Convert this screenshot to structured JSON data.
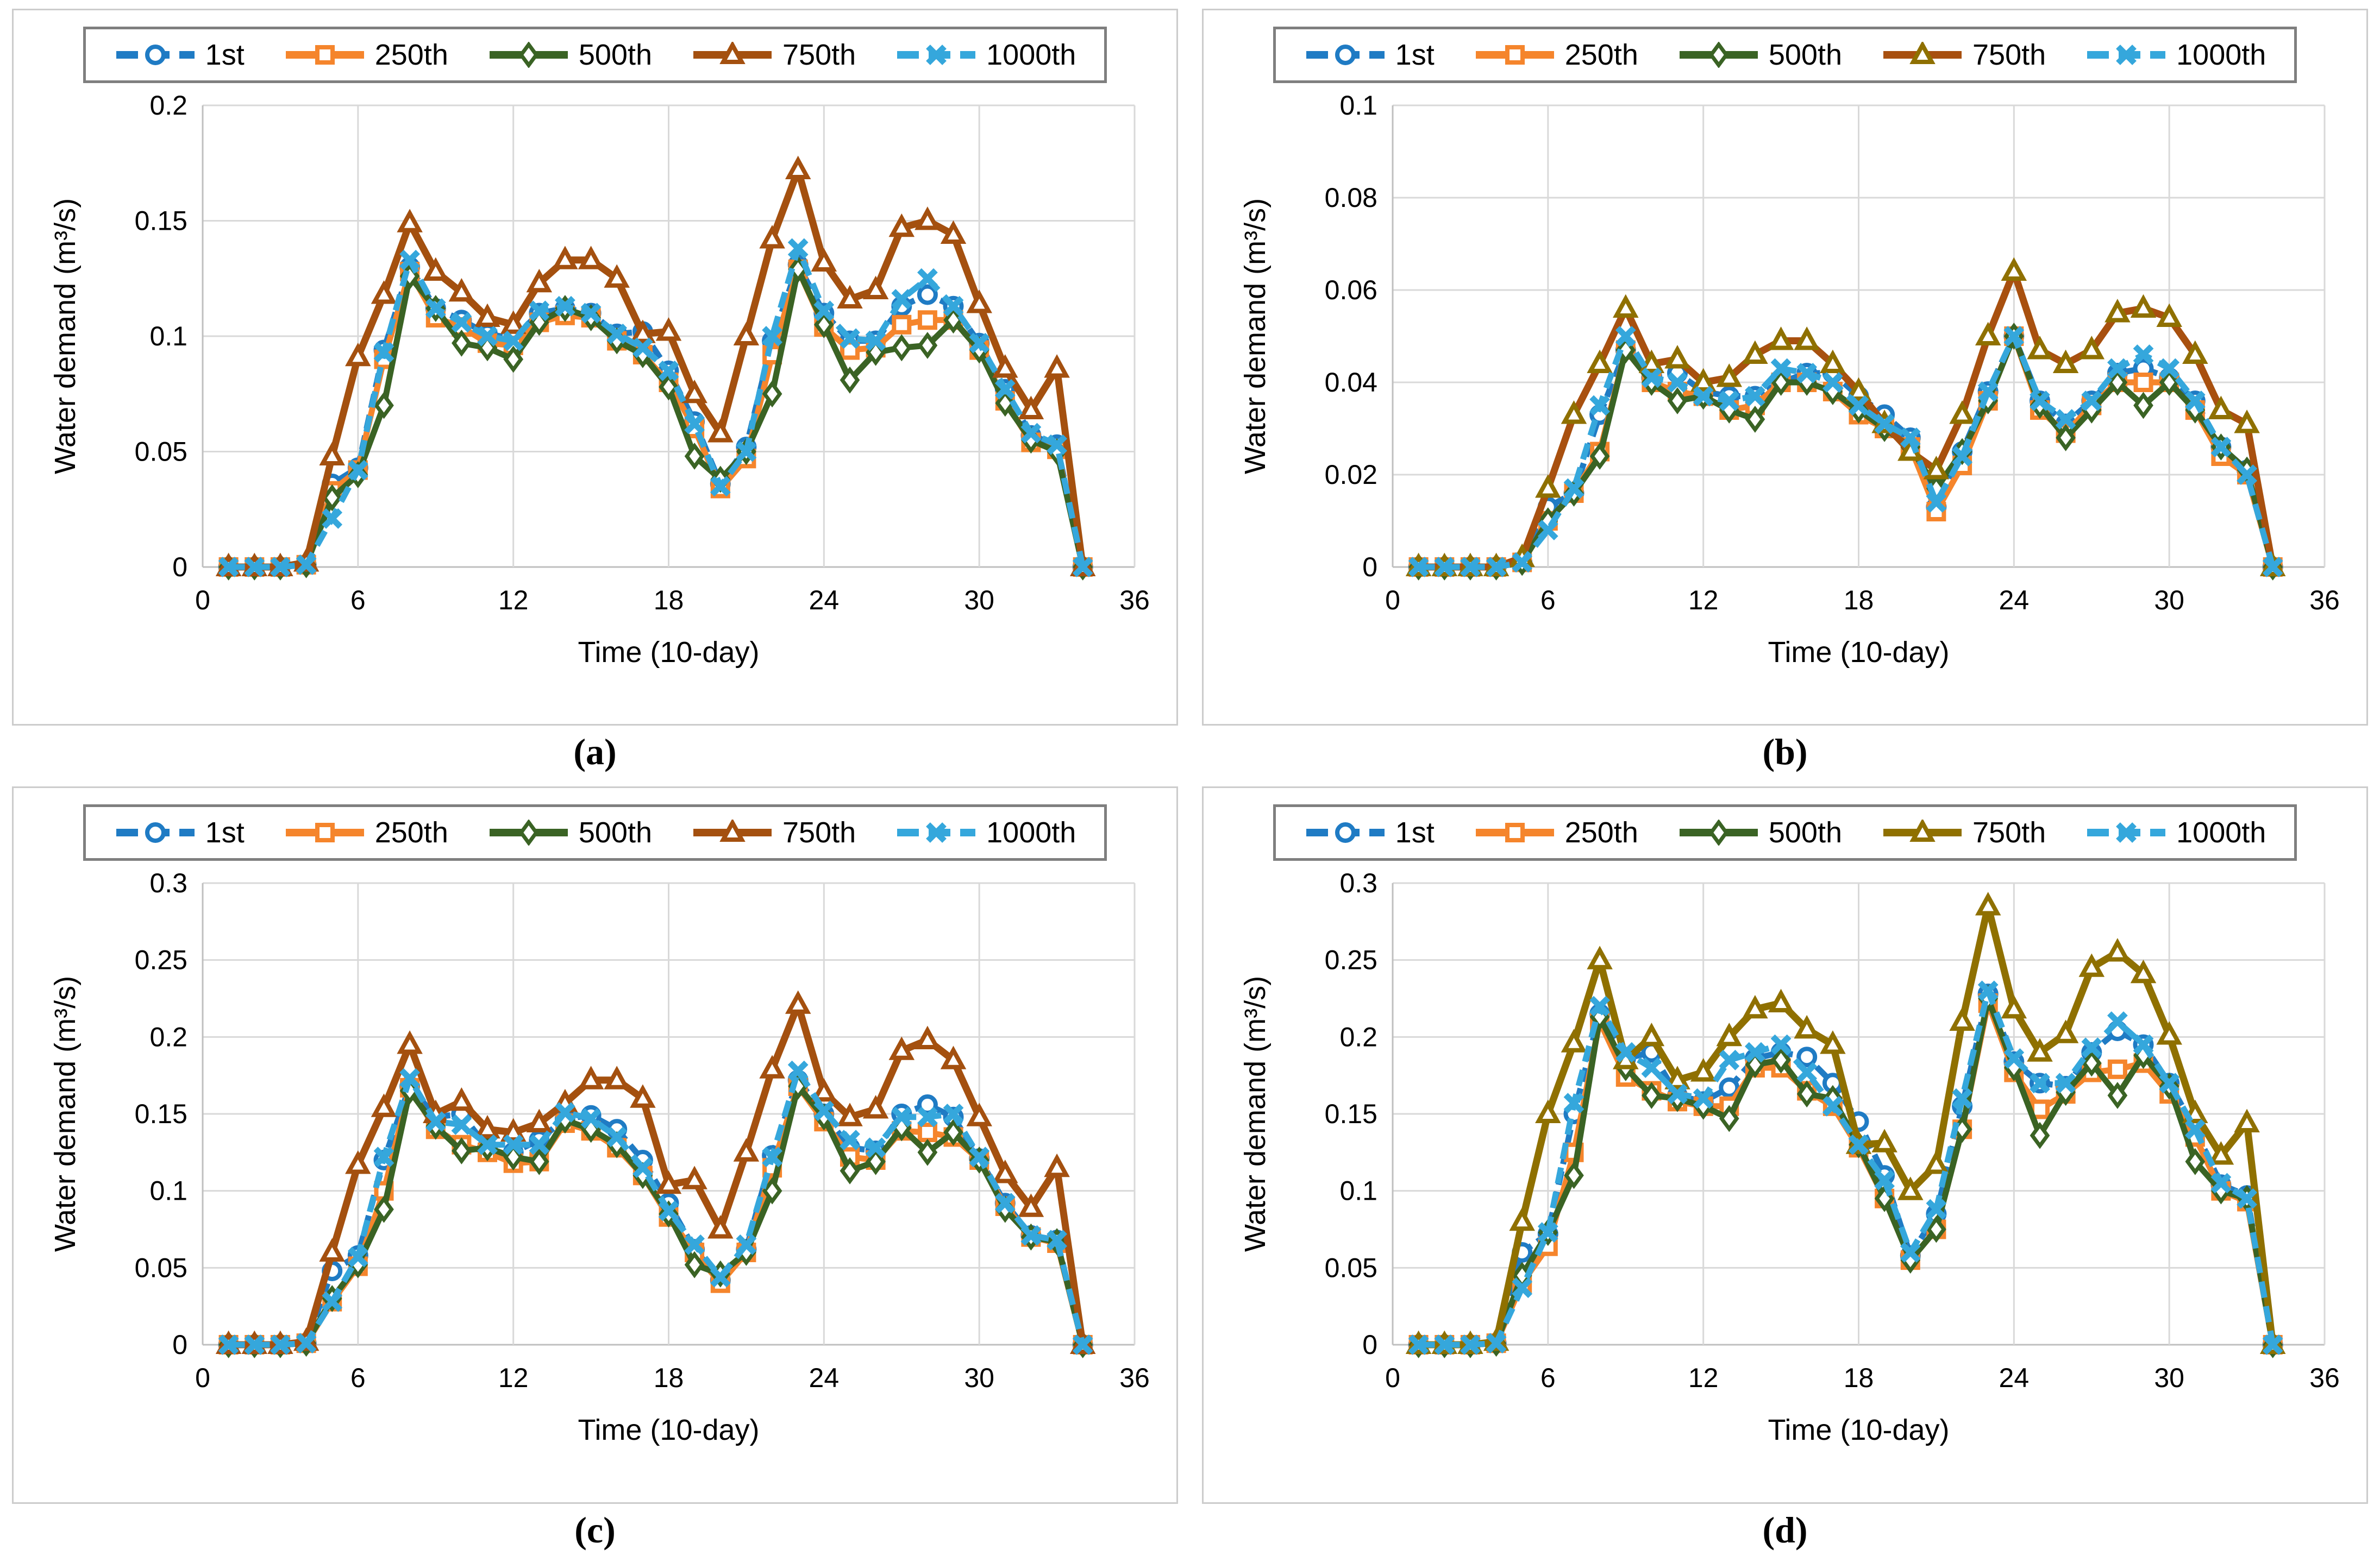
{
  "figure": {
    "type_note": "2x2 grid of line charts of water demand percentile scenarios",
    "grid_color": "#d9d9d9",
    "axis_color": "#bfbfbf",
    "panel_border_color": "#cccccc",
    "legend_border_color": "#7f7f7f",
    "legend_position": "top"
  },
  "series_meta": [
    {
      "id": "s1",
      "label": "1st",
      "marker": "circle",
      "color": "#1f7bc4",
      "dash": "26 13",
      "width": 11
    },
    {
      "id": "s250",
      "label": "250th",
      "marker": "square",
      "color": "#f5852c",
      "dash": null,
      "width": 11
    },
    {
      "id": "s500",
      "label": "500th",
      "marker": "diamond",
      "color": "#3a6324",
      "dash": null,
      "width": 11
    },
    {
      "id": "s750",
      "label": "750th",
      "marker": "triangle",
      "color": "#a4500f",
      "dash": null,
      "width": 13
    },
    {
      "id": "s1000",
      "label": "1000th",
      "marker": "x",
      "color": "#35a7dc",
      "dash": "30 16",
      "width": 11
    }
  ],
  "chart_data": [
    {
      "type": "line",
      "caption": "(a)",
      "xlabel": "Time (10-day)",
      "ylabel": "Water demand (m³/s)",
      "xlim": [
        0,
        36
      ],
      "ylim": [
        0,
        0.2
      ],
      "xticks": [
        "0",
        "6",
        "12",
        "18",
        "24",
        "30",
        "36"
      ],
      "yticks": [
        "0",
        "0.05",
        "0.1",
        "0.15",
        "0.2"
      ],
      "grid": true,
      "x": [
        1,
        2,
        3,
        4,
        5,
        6,
        7,
        8,
        9,
        10,
        11,
        12,
        13,
        14,
        15,
        16,
        17,
        18,
        19,
        20,
        21,
        22,
        23,
        24,
        25,
        26,
        27,
        28,
        29,
        30,
        31,
        32,
        33,
        34
      ],
      "series_colors": {},
      "series": {
        "s1": [
          0,
          0,
          0,
          0.001,
          0.036,
          0.043,
          0.094,
          0.13,
          0.112,
          0.107,
          0.101,
          0.099,
          0.11,
          0.112,
          0.11,
          0.101,
          0.102,
          0.085,
          0.063,
          0.036,
          0.052,
          0.098,
          0.131,
          0.11,
          0.098,
          0.098,
          0.113,
          0.118,
          0.113,
          0.097,
          0.077,
          0.057,
          0.053,
          0
        ],
        "s250": [
          0,
          0,
          0,
          0.001,
          0.033,
          0.042,
          0.09,
          0.128,
          0.108,
          0.104,
          0.097,
          0.096,
          0.106,
          0.109,
          0.108,
          0.098,
          0.092,
          0.08,
          0.06,
          0.034,
          0.047,
          0.092,
          0.129,
          0.104,
          0.094,
          0.095,
          0.105,
          0.107,
          0.107,
          0.094,
          0.072,
          0.054,
          0.051,
          0
        ],
        "s500": [
          0,
          0,
          0,
          0.001,
          0.03,
          0.04,
          0.07,
          0.126,
          0.112,
          0.097,
          0.095,
          0.09,
          0.106,
          0.112,
          0.108,
          0.098,
          0.092,
          0.078,
          0.048,
          0.038,
          0.05,
          0.075,
          0.129,
          0.105,
          0.081,
          0.093,
          0.095,
          0.096,
          0.107,
          0.094,
          0.071,
          0.055,
          0.05,
          0
        ],
        "s750": [
          0,
          0,
          0,
          0.002,
          0.048,
          0.091,
          0.118,
          0.149,
          0.128,
          0.119,
          0.108,
          0.105,
          0.123,
          0.133,
          0.133,
          0.125,
          0.101,
          0.102,
          0.075,
          0.058,
          0.1,
          0.142,
          0.172,
          0.132,
          0.116,
          0.12,
          0.147,
          0.15,
          0.144,
          0.114,
          0.086,
          0.068,
          0.086,
          0
        ],
        "s1000": [
          0,
          0,
          0,
          0.001,
          0.021,
          0.042,
          0.093,
          0.133,
          0.112,
          0.106,
          0.1,
          0.098,
          0.111,
          0.113,
          0.11,
          0.101,
          0.095,
          0.085,
          0.062,
          0.035,
          0.05,
          0.1,
          0.138,
          0.111,
          0.099,
          0.098,
          0.116,
          0.125,
          0.113,
          0.097,
          0.077,
          0.058,
          0.053,
          0
        ]
      }
    },
    {
      "type": "line",
      "caption": "(b)",
      "xlabel": "Time (10-day)",
      "ylabel": "Water demand (m³/s)",
      "xlim": [
        0,
        36
      ],
      "ylim": [
        0,
        0.1
      ],
      "xticks": [
        "0",
        "6",
        "12",
        "18",
        "24",
        "30",
        "36"
      ],
      "yticks": [
        "0",
        "0.02",
        "0.04",
        "0.06",
        "0.08",
        "0.1"
      ],
      "grid": true,
      "x": [
        1,
        2,
        3,
        4,
        5,
        6,
        7,
        8,
        9,
        10,
        11,
        12,
        13,
        14,
        15,
        16,
        17,
        18,
        19,
        20,
        21,
        22,
        23,
        24,
        25,
        26,
        27,
        28,
        29,
        30,
        31,
        32,
        33,
        34
      ],
      "series_colors": {
        "s750": {
          "line": "#a8500f",
          "marker": "#8f7000"
        }
      },
      "series": {
        "s1": [
          0,
          0,
          0,
          0,
          0.001,
          0.013,
          0.016,
          0.033,
          0.047,
          0.041,
          0.042,
          0.038,
          0.037,
          0.037,
          0.04,
          0.042,
          0.042,
          0.037,
          0.033,
          0.028,
          0.013,
          0.025,
          0.038,
          0.05,
          0.036,
          0.031,
          0.036,
          0.042,
          0.043,
          0.041,
          0.036,
          0.026,
          0.021,
          0
        ],
        "s250": [
          0,
          0,
          0,
          0,
          0.001,
          0.01,
          0.016,
          0.025,
          0.047,
          0.04,
          0.038,
          0.037,
          0.034,
          0.035,
          0.04,
          0.04,
          0.038,
          0.033,
          0.03,
          0.026,
          0.012,
          0.022,
          0.036,
          0.05,
          0.034,
          0.029,
          0.035,
          0.04,
          0.04,
          0.04,
          0.034,
          0.024,
          0.02,
          0
        ],
        "s500": [
          0,
          0,
          0,
          0,
          0.001,
          0.01,
          0.016,
          0.024,
          0.047,
          0.04,
          0.036,
          0.037,
          0.034,
          0.032,
          0.04,
          0.04,
          0.038,
          0.034,
          0.03,
          0.026,
          0.017,
          0.025,
          0.036,
          0.05,
          0.035,
          0.028,
          0.034,
          0.04,
          0.035,
          0.04,
          0.034,
          0.026,
          0.021,
          0
        ],
        "s750": [
          0,
          0,
          0,
          0,
          0.002,
          0.017,
          0.033,
          0.044,
          0.056,
          0.044,
          0.045,
          0.04,
          0.041,
          0.046,
          0.049,
          0.049,
          0.044,
          0.038,
          0.031,
          0.025,
          0.021,
          0.033,
          0.05,
          0.064,
          0.047,
          0.044,
          0.047,
          0.055,
          0.056,
          0.054,
          0.046,
          0.034,
          0.031,
          0
        ],
        "s1000": [
          0,
          0,
          0,
          0,
          0.001,
          0.008,
          0.017,
          0.035,
          0.05,
          0.041,
          0.04,
          0.037,
          0.036,
          0.037,
          0.043,
          0.042,
          0.04,
          0.035,
          0.031,
          0.028,
          0.014,
          0.024,
          0.038,
          0.05,
          0.036,
          0.032,
          0.036,
          0.043,
          0.046,
          0.043,
          0.036,
          0.026,
          0.02,
          0
        ]
      }
    },
    {
      "type": "line",
      "caption": "(c)",
      "xlabel": "Time (10-day)",
      "ylabel": "Water demand (m³/s)",
      "xlim": [
        0,
        36
      ],
      "ylim": [
        0,
        0.3
      ],
      "xticks": [
        "0",
        "6",
        "12",
        "18",
        "24",
        "30",
        "36"
      ],
      "yticks": [
        "0",
        "0.05",
        "0.1",
        "0.15",
        "0.2",
        "0.25",
        "0.3"
      ],
      "grid": true,
      "x": [
        1,
        2,
        3,
        4,
        5,
        6,
        7,
        8,
        9,
        10,
        11,
        12,
        13,
        14,
        15,
        16,
        17,
        18,
        19,
        20,
        21,
        22,
        23,
        24,
        25,
        26,
        27,
        28,
        29,
        30,
        31,
        32,
        33,
        34
      ],
      "series_colors": {},
      "series": {
        "s1": [
          0,
          0,
          0,
          0.001,
          0.048,
          0.058,
          0.12,
          0.168,
          0.148,
          0.15,
          0.128,
          0.125,
          0.133,
          0.147,
          0.149,
          0.14,
          0.12,
          0.092,
          0.062,
          0.042,
          0.062,
          0.123,
          0.172,
          0.15,
          0.128,
          0.126,
          0.15,
          0.156,
          0.148,
          0.121,
          0.092,
          0.071,
          0.068,
          0
        ],
        "s250": [
          0,
          0,
          0,
          0.001,
          0.028,
          0.051,
          0.1,
          0.167,
          0.14,
          0.13,
          0.125,
          0.118,
          0.119,
          0.144,
          0.139,
          0.128,
          0.11,
          0.083,
          0.06,
          0.04,
          0.06,
          0.115,
          0.168,
          0.145,
          0.122,
          0.12,
          0.139,
          0.138,
          0.135,
          0.12,
          0.09,
          0.07,
          0.066,
          0
        ],
        "s500": [
          0,
          0,
          0,
          0.001,
          0.03,
          0.052,
          0.088,
          0.165,
          0.142,
          0.126,
          0.128,
          0.122,
          0.119,
          0.146,
          0.14,
          0.13,
          0.11,
          0.085,
          0.052,
          0.046,
          0.06,
          0.1,
          0.168,
          0.148,
          0.113,
          0.119,
          0.141,
          0.125,
          0.138,
          0.12,
          0.088,
          0.07,
          0.067,
          0
        ],
        "s750": [
          0,
          0,
          0,
          0.002,
          0.06,
          0.117,
          0.154,
          0.195,
          0.15,
          0.158,
          0.14,
          0.138,
          0.144,
          0.157,
          0.172,
          0.172,
          0.16,
          0.104,
          0.107,
          0.075,
          0.125,
          0.179,
          0.221,
          0.164,
          0.148,
          0.153,
          0.191,
          0.198,
          0.185,
          0.148,
          0.111,
          0.089,
          0.115,
          0
        ],
        "s1000": [
          0,
          0,
          0,
          0.001,
          0.028,
          0.057,
          0.122,
          0.173,
          0.145,
          0.143,
          0.13,
          0.13,
          0.13,
          0.151,
          0.147,
          0.135,
          0.115,
          0.087,
          0.065,
          0.044,
          0.065,
          0.122,
          0.178,
          0.152,
          0.133,
          0.128,
          0.148,
          0.148,
          0.15,
          0.122,
          0.092,
          0.071,
          0.068,
          0
        ]
      }
    },
    {
      "type": "line",
      "caption": "(d)",
      "xlabel": "Time (10-day)",
      "ylabel": "Water demand (m³/s)",
      "xlim": [
        0,
        36
      ],
      "ylim": [
        0,
        0.3
      ],
      "xticks": [
        "0",
        "6",
        "12",
        "18",
        "24",
        "30",
        "36"
      ],
      "yticks": [
        "0",
        "0.05",
        "0.1",
        "0.15",
        "0.2",
        "0.25",
        "0.3"
      ],
      "grid": true,
      "x": [
        1,
        2,
        3,
        4,
        5,
        6,
        7,
        8,
        9,
        10,
        11,
        12,
        13,
        14,
        15,
        16,
        17,
        18,
        19,
        20,
        21,
        22,
        23,
        24,
        25,
        26,
        27,
        28,
        29,
        30,
        31,
        32,
        33,
        34
      ],
      "series_colors": {
        "s750": {
          "line": "#8f7000",
          "marker": "#8f7000"
        }
      },
      "series": {
        "s1": [
          0,
          0,
          0,
          0.001,
          0.06,
          0.072,
          0.15,
          0.215,
          0.186,
          0.19,
          0.162,
          0.158,
          0.167,
          0.186,
          0.19,
          0.187,
          0.17,
          0.145,
          0.11,
          0.058,
          0.085,
          0.155,
          0.228,
          0.184,
          0.17,
          0.168,
          0.19,
          0.204,
          0.195,
          0.17,
          0.14,
          0.104,
          0.097,
          0
        ],
        "s250": [
          0,
          0,
          0,
          0.001,
          0.04,
          0.064,
          0.125,
          0.21,
          0.174,
          0.165,
          0.158,
          0.155,
          0.155,
          0.18,
          0.18,
          0.165,
          0.155,
          0.128,
          0.095,
          0.055,
          0.075,
          0.14,
          0.222,
          0.177,
          0.153,
          0.163,
          0.177,
          0.179,
          0.183,
          0.163,
          0.135,
          0.1,
          0.093,
          0
        ],
        "s500": [
          0,
          0,
          0,
          0.001,
          0.045,
          0.073,
          0.11,
          0.213,
          0.18,
          0.162,
          0.16,
          0.155,
          0.147,
          0.182,
          0.185,
          0.163,
          0.16,
          0.13,
          0.095,
          0.055,
          0.075,
          0.14,
          0.225,
          0.18,
          0.136,
          0.164,
          0.183,
          0.162,
          0.188,
          0.168,
          0.119,
          0.1,
          0.095,
          0
        ],
        "s750": [
          0,
          0,
          0,
          0.002,
          0.08,
          0.15,
          0.196,
          0.25,
          0.185,
          0.2,
          0.172,
          0.177,
          0.2,
          0.218,
          0.222,
          0.205,
          0.195,
          0.13,
          0.131,
          0.1,
          0.117,
          0.21,
          0.285,
          0.218,
          0.19,
          0.202,
          0.245,
          0.255,
          0.241,
          0.201,
          0.15,
          0.123,
          0.144,
          0
        ],
        "s1000": [
          0,
          0,
          0,
          0.001,
          0.037,
          0.073,
          0.157,
          0.22,
          0.19,
          0.18,
          0.163,
          0.16,
          0.185,
          0.19,
          0.195,
          0.177,
          0.155,
          0.13,
          0.107,
          0.06,
          0.088,
          0.16,
          0.23,
          0.186,
          0.17,
          0.17,
          0.193,
          0.21,
          0.195,
          0.17,
          0.14,
          0.105,
          0.095,
          0
        ]
      }
    }
  ]
}
